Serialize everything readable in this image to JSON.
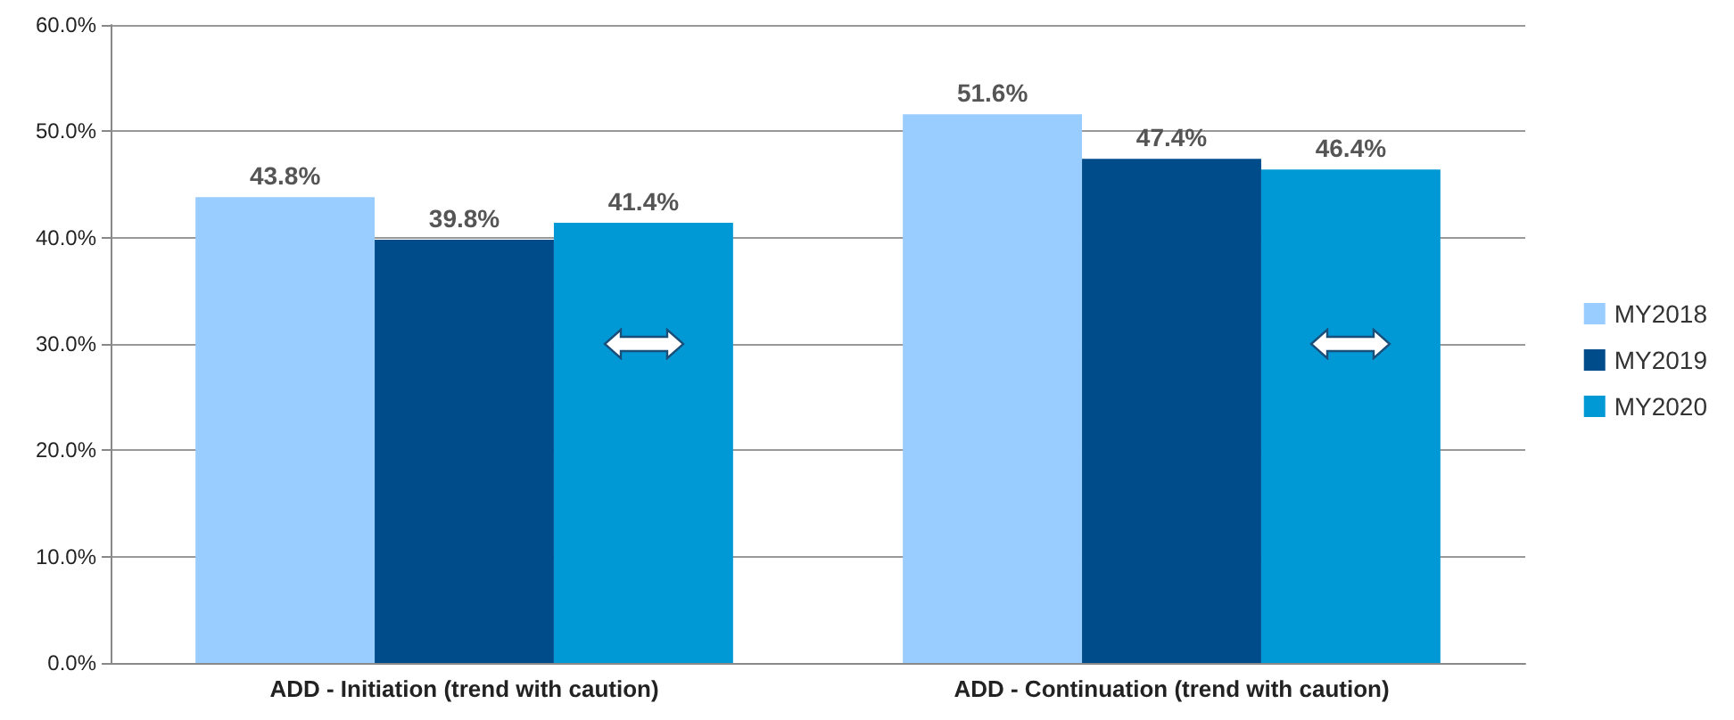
{
  "chart_data": {
    "type": "bar",
    "categories": [
      "ADD - Initiation (trend with caution)",
      "ADD - Continuation (trend with caution)"
    ],
    "series": [
      {
        "name": "MY2018",
        "color": "#99ccff",
        "values": [
          43.8,
          51.6
        ],
        "value_labels": [
          "43.8%",
          "51.6%"
        ]
      },
      {
        "name": "MY2019",
        "color": "#004c8a",
        "values": [
          39.8,
          47.4
        ],
        "value_labels": [
          "39.8%",
          "47.4%"
        ]
      },
      {
        "name": "MY2020",
        "color": "#0099d6",
        "values": [
          41.4,
          46.4
        ],
        "value_labels": [
          "41.4%",
          "46.4%"
        ]
      }
    ],
    "ylim": [
      0,
      60
    ],
    "yticks": [
      {
        "value": 0,
        "label": "0.0%"
      },
      {
        "value": 10,
        "label": "10.0%"
      },
      {
        "value": 20,
        "label": "20.0%"
      },
      {
        "value": 30,
        "label": "30.0%"
      },
      {
        "value": 40,
        "label": "40.0%"
      },
      {
        "value": 50,
        "label": "50.0%"
      },
      {
        "value": 60,
        "label": "60.0%"
      }
    ],
    "grid": "y",
    "legend": "right"
  }
}
